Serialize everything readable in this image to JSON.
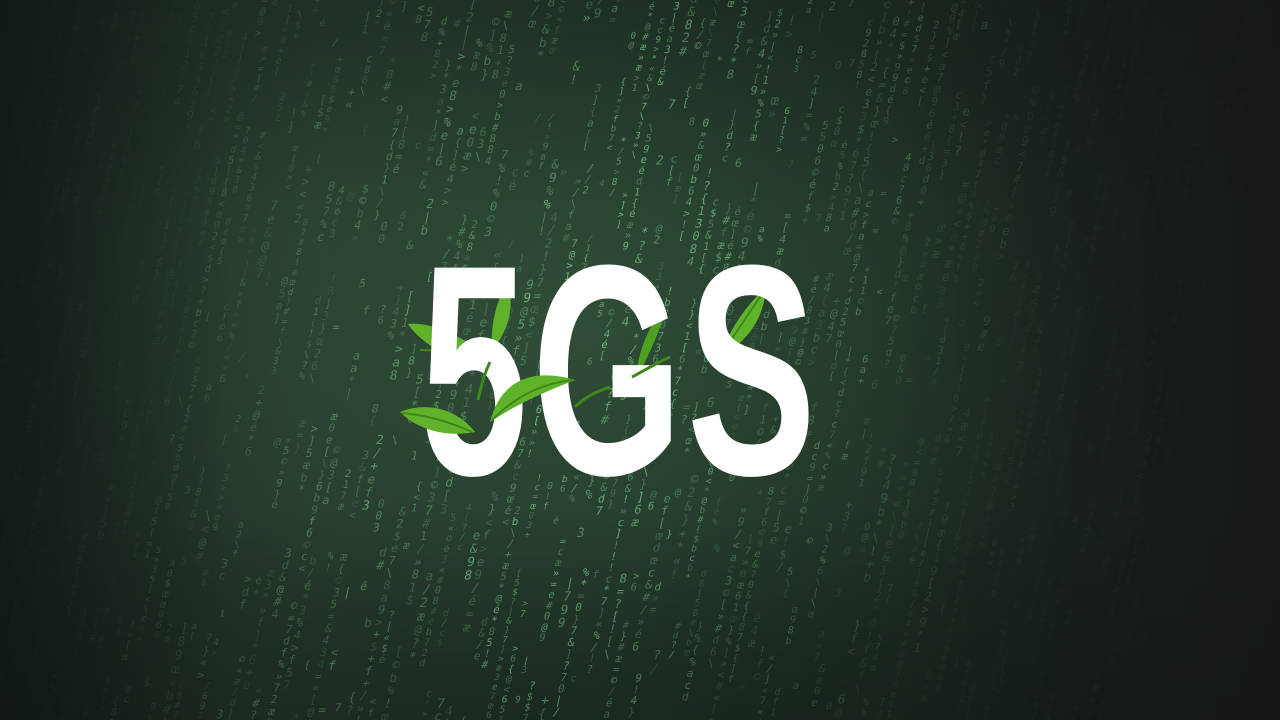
{
  "scene": {
    "description_free": true,
    "background_color": "#22352a",
    "code_color": "#7ed38a",
    "code_glyphs": "0123456789abcdef{}[]<>=+*/\\|#@&%$?!«»éæœ©"
  },
  "logo": {
    "text": "5GS",
    "text_color": "#ffffff",
    "leaf_color": "#5fb22a",
    "leaf_dark_color": "#3d8a1a",
    "icon": "leaf-sprouts-icon"
  }
}
